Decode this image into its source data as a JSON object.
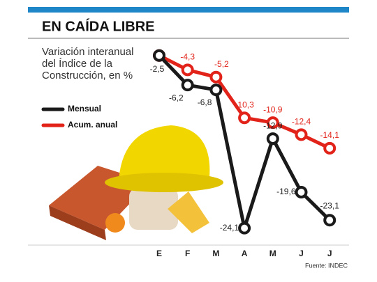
{
  "chart_data": {
    "type": "line",
    "title": "EN CAÍDA LIBRE",
    "subtitle": "Variación interanual del Índice de la Construcción, en %",
    "source": "Fuente: INDEC",
    "categories": [
      "E",
      "F",
      "M",
      "A",
      "M",
      "J",
      "J"
    ],
    "series": [
      {
        "name": "Mensual",
        "color": "#1a1a1a",
        "values": [
          -2.5,
          -6.2,
          -6.8,
          -24.1,
          -12.9,
          -19.6,
          -23.1
        ],
        "value_labels": [
          "-2,5",
          "-6,2",
          "-6,8",
          "-24,1",
          "-12,9",
          "-19,6",
          "-23,1"
        ]
      },
      {
        "name": "Acum. anual",
        "color": "#e2231a",
        "values": [
          -2.5,
          -4.3,
          -5.2,
          -10.3,
          -10.9,
          -12.4,
          -14.1
        ],
        "value_labels": [
          null,
          "-4,3",
          "-5,2",
          "-10,3",
          "-10,9",
          "-12,4",
          "-14,1"
        ]
      }
    ]
  }
}
